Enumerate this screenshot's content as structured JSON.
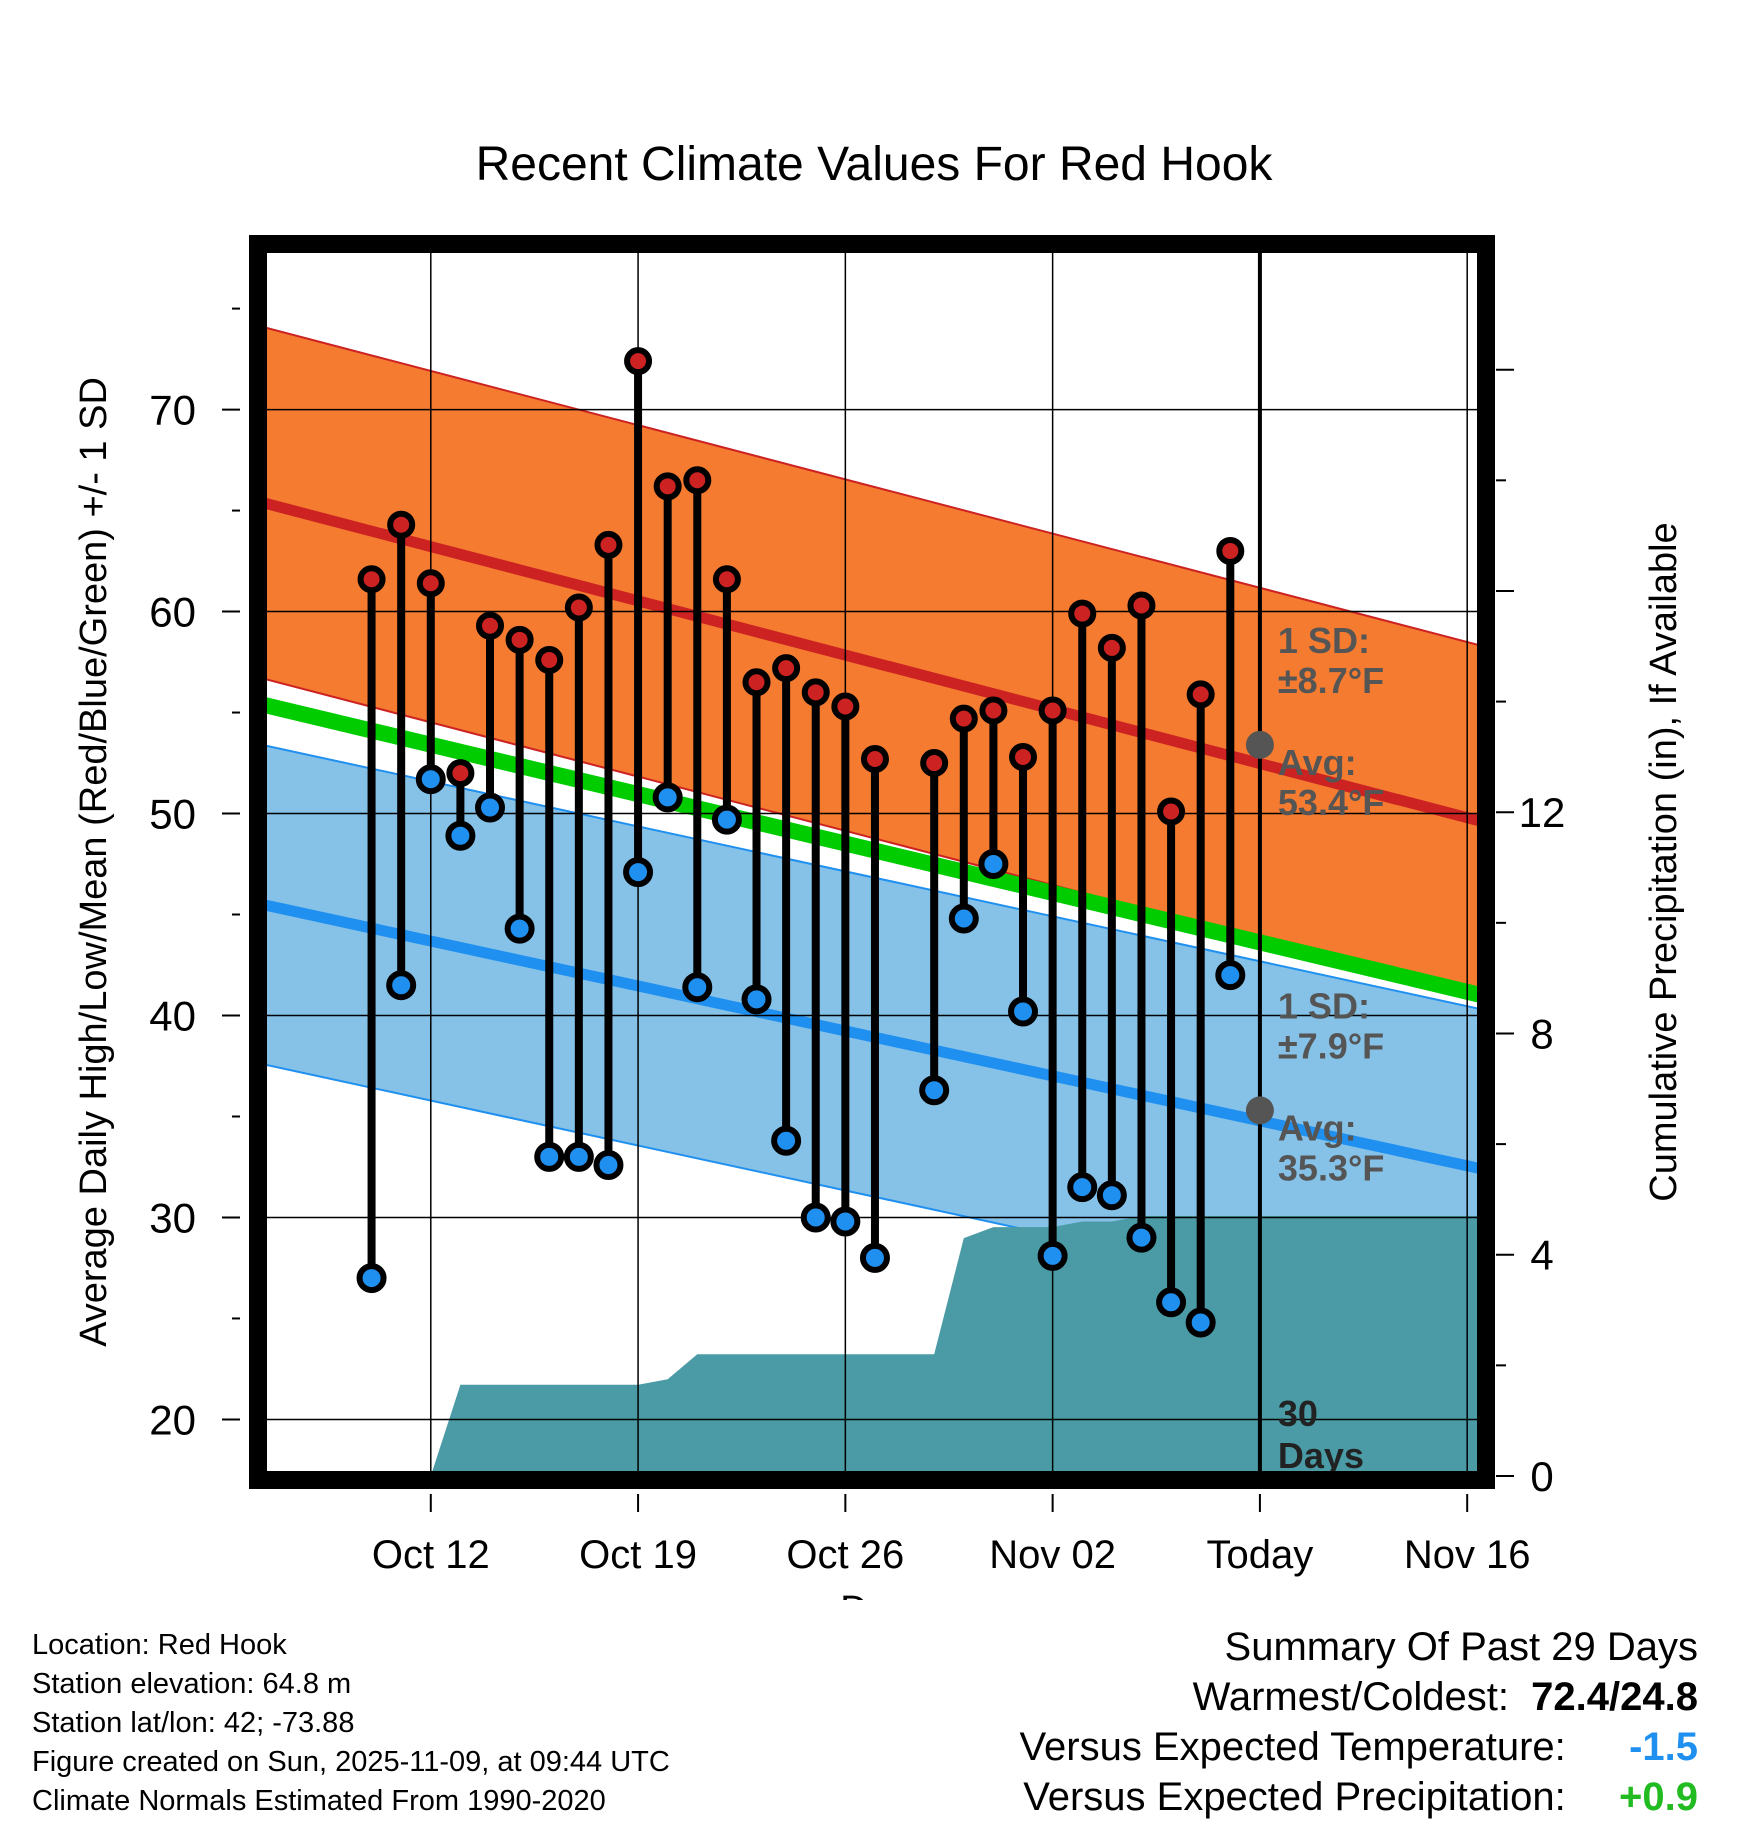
{
  "chart_data": {
    "type": "line",
    "title": "Recent Climate Values For Red Hook",
    "xlabel": "Day",
    "ylabel": "Average Daily High/Low/Mean (Red/Blue/Green) +/- 1 SD",
    "ylabel_right": "Cumulative Precipitation (in), If Available",
    "x_tick_labels": [
      "Oct 12",
      "Oct 19",
      "Oct 26",
      "Nov 02",
      "Today",
      "Nov 16"
    ],
    "y_ticks": [
      20,
      30,
      40,
      50,
      60,
      70
    ],
    "y_right_ticks": [
      0,
      4,
      8,
      12
    ],
    "xlim": [
      -3.7,
      37.5
    ],
    "ylim": [
      17.2,
      78.0
    ],
    "y_right_lim": [
      0,
      22.2
    ],
    "normals": {
      "high_avg": [
        65.4,
        49.6
      ],
      "high_sd": 8.7,
      "low_avg": [
        45.5,
        32.4
      ],
      "low_sd": 7.9,
      "mean_avg": [
        55.4,
        41.0
      ],
      "x_range": [
        -3.7,
        37.5
      ]
    },
    "series": [
      {
        "name": "Daily high",
        "color": "#cc2222",
        "values": [
          61.6,
          64.3,
          61.4,
          52.0,
          59.3,
          58.6,
          57.6,
          60.2,
          63.3,
          72.4,
          66.2,
          66.5,
          61.6,
          56.5,
          57.2,
          56.0,
          55.3,
          52.7,
          null,
          52.5,
          54.7,
          55.1,
          52.8,
          55.1,
          59.9,
          58.2,
          60.3,
          50.1,
          55.9,
          63.0
        ]
      },
      {
        "name": "Daily low",
        "color": "#2090f0",
        "values": [
          27.0,
          41.5,
          51.7,
          48.9,
          50.3,
          44.3,
          33.0,
          33.0,
          32.6,
          47.1,
          50.8,
          41.4,
          49.7,
          40.8,
          33.8,
          30.0,
          29.8,
          28.0,
          null,
          36.3,
          44.8,
          47.5,
          40.2,
          28.1,
          31.5,
          31.1,
          29.0,
          25.8,
          24.8,
          42.0
        ]
      },
      {
        "name": "Cumulative precipitation",
        "color": "#4a9ba5",
        "values": [
          0,
          0,
          0,
          1.65,
          1.65,
          1.65,
          1.65,
          1.65,
          1.65,
          1.65,
          1.75,
          2.2,
          2.2,
          2.2,
          2.2,
          2.2,
          2.2,
          2.2,
          2.2,
          2.2,
          4.3,
          4.5,
          4.5,
          4.5,
          4.6,
          4.6,
          4.7,
          4.7,
          4.7,
          4.7,
          4.7
        ]
      }
    ],
    "today_index": 30,
    "annotations": {
      "high_sd_label_1": "1 SD:",
      "high_sd_label_2": "±8.7°F",
      "high_avg_label_1": "Avg:",
      "high_avg_label_2": "53.4°F",
      "high_today_avg": 53.4,
      "low_sd_label_1": "1 SD:",
      "low_sd_label_2": "±7.9°F",
      "low_avg_label_1": "Avg:",
      "low_avg_label_2": "35.3°F",
      "low_today_avg": 35.3,
      "days_label_1": "30",
      "days_label_2": "Days"
    },
    "colors": {
      "high_band": "#f47b30",
      "high_line": "#cc2222",
      "low_band": "#86c2e8",
      "low_line": "#2090f0",
      "mean_line": "#00cc00",
      "precip": "#4a9ba5",
      "annot": "#555555"
    }
  },
  "meta": {
    "location": "Location: Red Hook",
    "elevation": "Station elevation: 64.8 m",
    "latlon": "Station lat/lon: 42; -73.88",
    "created": "Figure created on Sun, 2025-11-09, at 09:44 UTC",
    "normals": "Climate Normals Estimated From 1990-2020"
  },
  "summary": {
    "title": "Summary Of Past 29 Days",
    "warm_cold_label": "Warmest/Coldest:",
    "warm_cold_value": "72.4/24.8",
    "temp_label": "Versus Expected Temperature:",
    "temp_value": "-1.5",
    "temp_color": "#2090f0",
    "precip_label": "Versus Expected Precipitation:",
    "precip_value": "+0.9",
    "precip_color": "#22bb22"
  }
}
